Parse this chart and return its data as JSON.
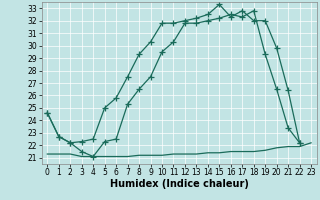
{
  "title": "",
  "xlabel": "Humidex (Indice chaleur)",
  "xlim": [
    -0.5,
    23.5
  ],
  "ylim": [
    20.5,
    33.5
  ],
  "xticks": [
    0,
    1,
    2,
    3,
    4,
    5,
    6,
    7,
    8,
    9,
    10,
    11,
    12,
    13,
    14,
    15,
    16,
    17,
    18,
    19,
    20,
    21,
    22,
    23
  ],
  "yticks": [
    21,
    22,
    23,
    24,
    25,
    26,
    27,
    28,
    29,
    30,
    31,
    32,
    33
  ],
  "bg_color": "#c2e4e4",
  "line_color": "#1a6b5a",
  "grid_color": "#ffffff",
  "lines": [
    {
      "x": [
        0,
        1,
        2,
        3,
        4,
        5,
        6,
        7,
        8,
        9,
        10,
        11,
        12,
        13,
        14,
        15,
        16,
        17,
        18,
        19,
        20,
        21,
        22,
        23
      ],
      "y": [
        21.3,
        21.3,
        21.3,
        21.1,
        21.1,
        21.1,
        21.1,
        21.1,
        21.2,
        21.2,
        21.2,
        21.3,
        21.3,
        21.3,
        21.4,
        21.4,
        21.5,
        21.5,
        21.5,
        21.6,
        21.8,
        21.9,
        21.9,
        22.2
      ],
      "marker": false
    },
    {
      "x": [
        0,
        1,
        2,
        3,
        4,
        5,
        6,
        7,
        8,
        9,
        10,
        11,
        12,
        13,
        14,
        15,
        16,
        17,
        18,
        19,
        20,
        21,
        22
      ],
      "y": [
        24.6,
        22.7,
        22.2,
        21.5,
        21.1,
        22.3,
        22.5,
        25.3,
        26.5,
        27.5,
        29.5,
        30.3,
        31.8,
        31.8,
        32.0,
        32.2,
        32.5,
        32.3,
        32.8,
        29.3,
        26.5,
        23.4,
        22.2
      ],
      "marker": true
    },
    {
      "x": [
        0,
        1,
        2,
        3,
        4,
        5,
        6,
        7,
        8,
        9,
        10,
        11,
        12,
        13,
        14,
        15,
        16,
        17,
        18,
        19,
        20,
        21,
        22
      ],
      "y": [
        24.6,
        22.7,
        22.2,
        22.3,
        22.5,
        25.0,
        25.8,
        27.5,
        29.3,
        30.3,
        31.8,
        31.8,
        32.0,
        32.2,
        32.5,
        33.3,
        32.3,
        32.8,
        32.0,
        32.0,
        29.8,
        26.4,
        22.2
      ],
      "marker": true
    }
  ],
  "xlabel_fontsize": 7,
  "xlabel_fontweight": "bold",
  "tick_fontsize": 5.5,
  "linewidth": 0.9,
  "markersize": 4,
  "markeredgewidth": 0.9
}
